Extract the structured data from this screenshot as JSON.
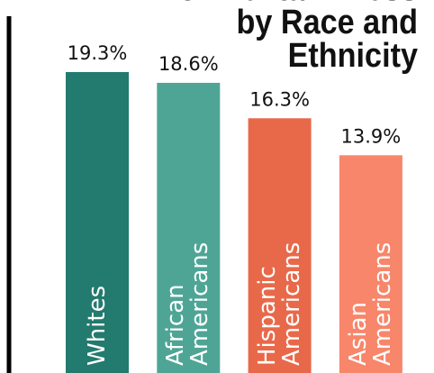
{
  "chart_data": {
    "type": "bar",
    "title": "of Mental Illness by Race and Ethnicity",
    "categories": [
      "Whites",
      "African Americans",
      "Hispanic Americans",
      "Asian Americans"
    ],
    "values": [
      19.3,
      18.6,
      16.3,
      13.9
    ],
    "value_labels": [
      "19.3%",
      "18.6%",
      "16.3%",
      "13.9%"
    ],
    "colors": [
      "#237a6e",
      "#4ea596",
      "#e8694a",
      "#f7866a"
    ]
  }
}
